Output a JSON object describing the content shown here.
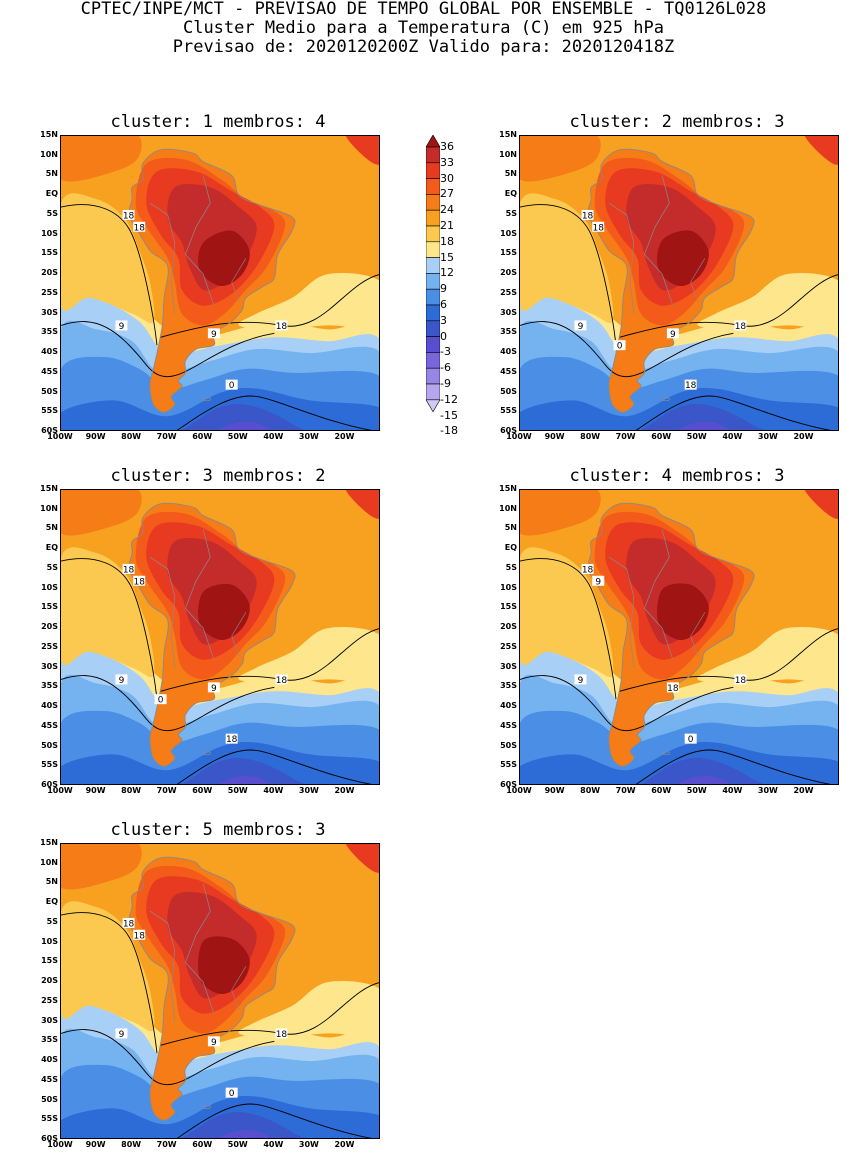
{
  "header": {
    "line1": "CPTEC/INPE/MCT - PREVISAO DE TEMPO GLOBAL POR ENSEMBLE - TQ0126L028",
    "line2": "Cluster Medio para a Temperatura (C) em 925 hPa",
    "line3": "Previsao de: 2020120200Z   Valido para: 2020120418Z"
  },
  "panels": [
    {
      "title": "cluster: 1  membros: 4",
      "contour_labels": [
        "18",
        "18",
        "9",
        "9",
        "18",
        "0"
      ]
    },
    {
      "title": "cluster: 2  membros: 3",
      "contour_labels": [
        "18",
        "18",
        "9",
        "9",
        "18",
        "18",
        "0"
      ]
    },
    {
      "title": "cluster: 3  membros: 2",
      "contour_labels": [
        "18",
        "18",
        "9",
        "9",
        "18",
        "18",
        "0"
      ]
    },
    {
      "title": "cluster: 4  membros: 3",
      "contour_labels": [
        "18",
        "9",
        "9",
        "18",
        "18",
        "0"
      ]
    },
    {
      "title": "cluster: 5  membros: 3",
      "contour_labels": [
        "18",
        "18",
        "9",
        "9",
        "18",
        "0"
      ]
    }
  ],
  "y_ticks": [
    "15N",
    "10N",
    "5N",
    "EQ",
    "5S",
    "10S",
    "15S",
    "20S",
    "25S",
    "30S",
    "35S",
    "40S",
    "45S",
    "50S",
    "55S",
    "60S"
  ],
  "x_ticks": [
    "100W",
    "90W",
    "80W",
    "70W",
    "60W",
    "50W",
    "40W",
    "30W",
    "20W"
  ],
  "legend": {
    "labels": [
      "36",
      "33",
      "30",
      "27",
      "24",
      "21",
      "18",
      "15",
      "12",
      "9",
      "6",
      "3",
      "0",
      "-3",
      "-6",
      "-9",
      "-12",
      "-15",
      "-18"
    ],
    "colors": [
      "#a01414",
      "#c42c2c",
      "#e83a20",
      "#f45a1a",
      "#f57c16",
      "#f8a020",
      "#fbc850",
      "#fde68c",
      "#a8cff6",
      "#74b2f0",
      "#4a8ee6",
      "#2d6bd6",
      "#3a56c8",
      "#5a4ed0",
      "#7a66dc",
      "#9886e6",
      "#b6a6ee",
      "#d6c8f6"
    ]
  }
}
